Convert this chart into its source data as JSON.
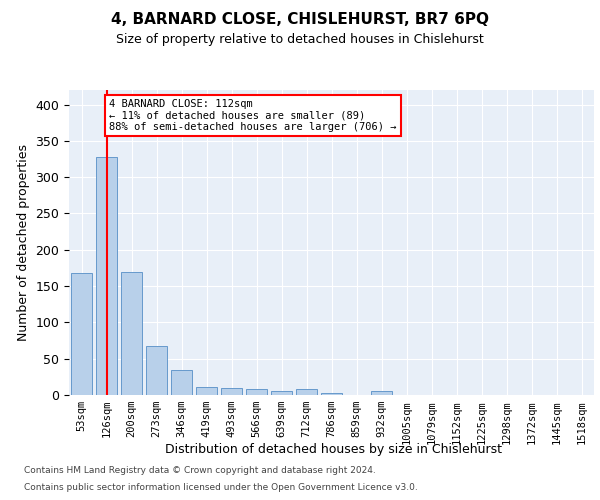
{
  "title": "4, BARNARD CLOSE, CHISLEHURST, BR7 6PQ",
  "subtitle": "Size of property relative to detached houses in Chislehurst",
  "xlabel": "Distribution of detached houses by size in Chislehurst",
  "ylabel": "Number of detached properties",
  "bar_color": "#b8d0ea",
  "bar_edge_color": "#6699cc",
  "background_color": "#e8eff8",
  "grid_color": "#ffffff",
  "categories": [
    "53sqm",
    "126sqm",
    "200sqm",
    "273sqm",
    "346sqm",
    "419sqm",
    "493sqm",
    "566sqm",
    "639sqm",
    "712sqm",
    "786sqm",
    "859sqm",
    "932sqm",
    "1005sqm",
    "1079sqm",
    "1152sqm",
    "1225sqm",
    "1298sqm",
    "1372sqm",
    "1445sqm",
    "1518sqm"
  ],
  "values": [
    168,
    328,
    170,
    68,
    35,
    11,
    9,
    8,
    5,
    8,
    3,
    0,
    5,
    0,
    0,
    0,
    0,
    0,
    0,
    0,
    0
  ],
  "annotation_text": "4 BARNARD CLOSE: 112sqm\n← 11% of detached houses are smaller (89)\n88% of semi-detached houses are larger (706) →",
  "annotation_box_color": "white",
  "annotation_box_edge_color": "red",
  "vline_color": "red",
  "vline_x": 1.0,
  "ylim": [
    0,
    420
  ],
  "yticks": [
    0,
    50,
    100,
    150,
    200,
    250,
    300,
    350,
    400
  ],
  "footer_line1": "Contains HM Land Registry data © Crown copyright and database right 2024.",
  "footer_line2": "Contains public sector information licensed under the Open Government Licence v3.0."
}
